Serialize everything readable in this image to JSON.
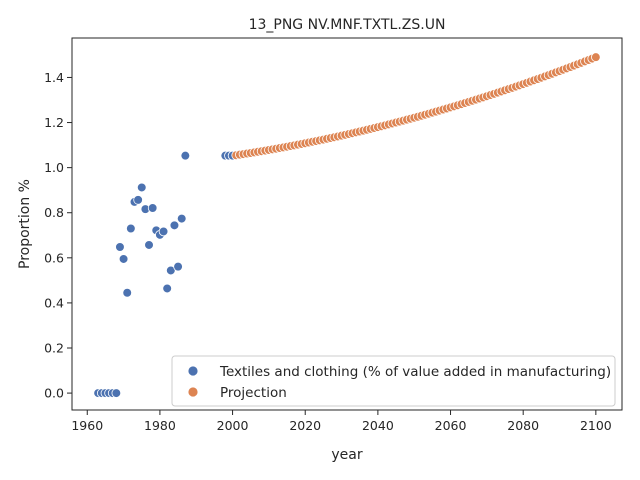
{
  "chart_data": {
    "type": "scatter",
    "title": "13_PNG NV.MNF.TXTL.ZS.UN",
    "xlabel": "year",
    "ylabel": "Proportion %",
    "xlim": [
      1955.8,
      2107.2
    ],
    "ylim": [
      -0.075,
      1.575
    ],
    "xticks": [
      1960,
      1980,
      2000,
      2020,
      2040,
      2060,
      2080,
      2100
    ],
    "yticks": [
      0.0,
      0.2,
      0.4,
      0.6,
      0.8,
      1.0,
      1.2,
      1.4
    ],
    "xtick_labels": [
      "1960",
      "1980",
      "2000",
      "2020",
      "2040",
      "2060",
      "2080",
      "2100"
    ],
    "ytick_labels": [
      "0.0",
      "0.2",
      "0.4",
      "0.6",
      "0.8",
      "1.0",
      "1.2",
      "1.4"
    ],
    "grid": false,
    "legend_position": "lower-right",
    "series": [
      {
        "name": "Textiles and clothing (% of value added in manufacturing)",
        "color": "#4c72b0",
        "points": [
          [
            1963,
            0.0
          ],
          [
            1964,
            0.0
          ],
          [
            1965,
            0.0
          ],
          [
            1966,
            0.0
          ],
          [
            1967,
            0.0
          ],
          [
            1968,
            0.0
          ],
          [
            1969,
            0.648
          ],
          [
            1970,
            0.595
          ],
          [
            1971,
            0.445
          ],
          [
            1972,
            0.73
          ],
          [
            1973,
            0.848
          ],
          [
            1974,
            0.857
          ],
          [
            1975,
            0.912
          ],
          [
            1976,
            0.816
          ],
          [
            1977,
            0.657
          ],
          [
            1978,
            0.821
          ],
          [
            1979,
            0.722
          ],
          [
            1980,
            0.702
          ],
          [
            1981,
            0.717
          ],
          [
            1982,
            0.464
          ],
          [
            1983,
            0.544
          ],
          [
            1984,
            0.744
          ],
          [
            1985,
            0.561
          ],
          [
            1986,
            0.774
          ],
          [
            1987,
            1.053
          ],
          [
            1998,
            1.053
          ],
          [
            1999,
            1.053
          ],
          [
            2000,
            1.053
          ]
        ]
      },
      {
        "name": "Projection",
        "color": "#dd8452",
        "x_start": 2001,
        "x_end": 2100,
        "y_start": 1.055,
        "y_end": 1.49
      }
    ]
  }
}
